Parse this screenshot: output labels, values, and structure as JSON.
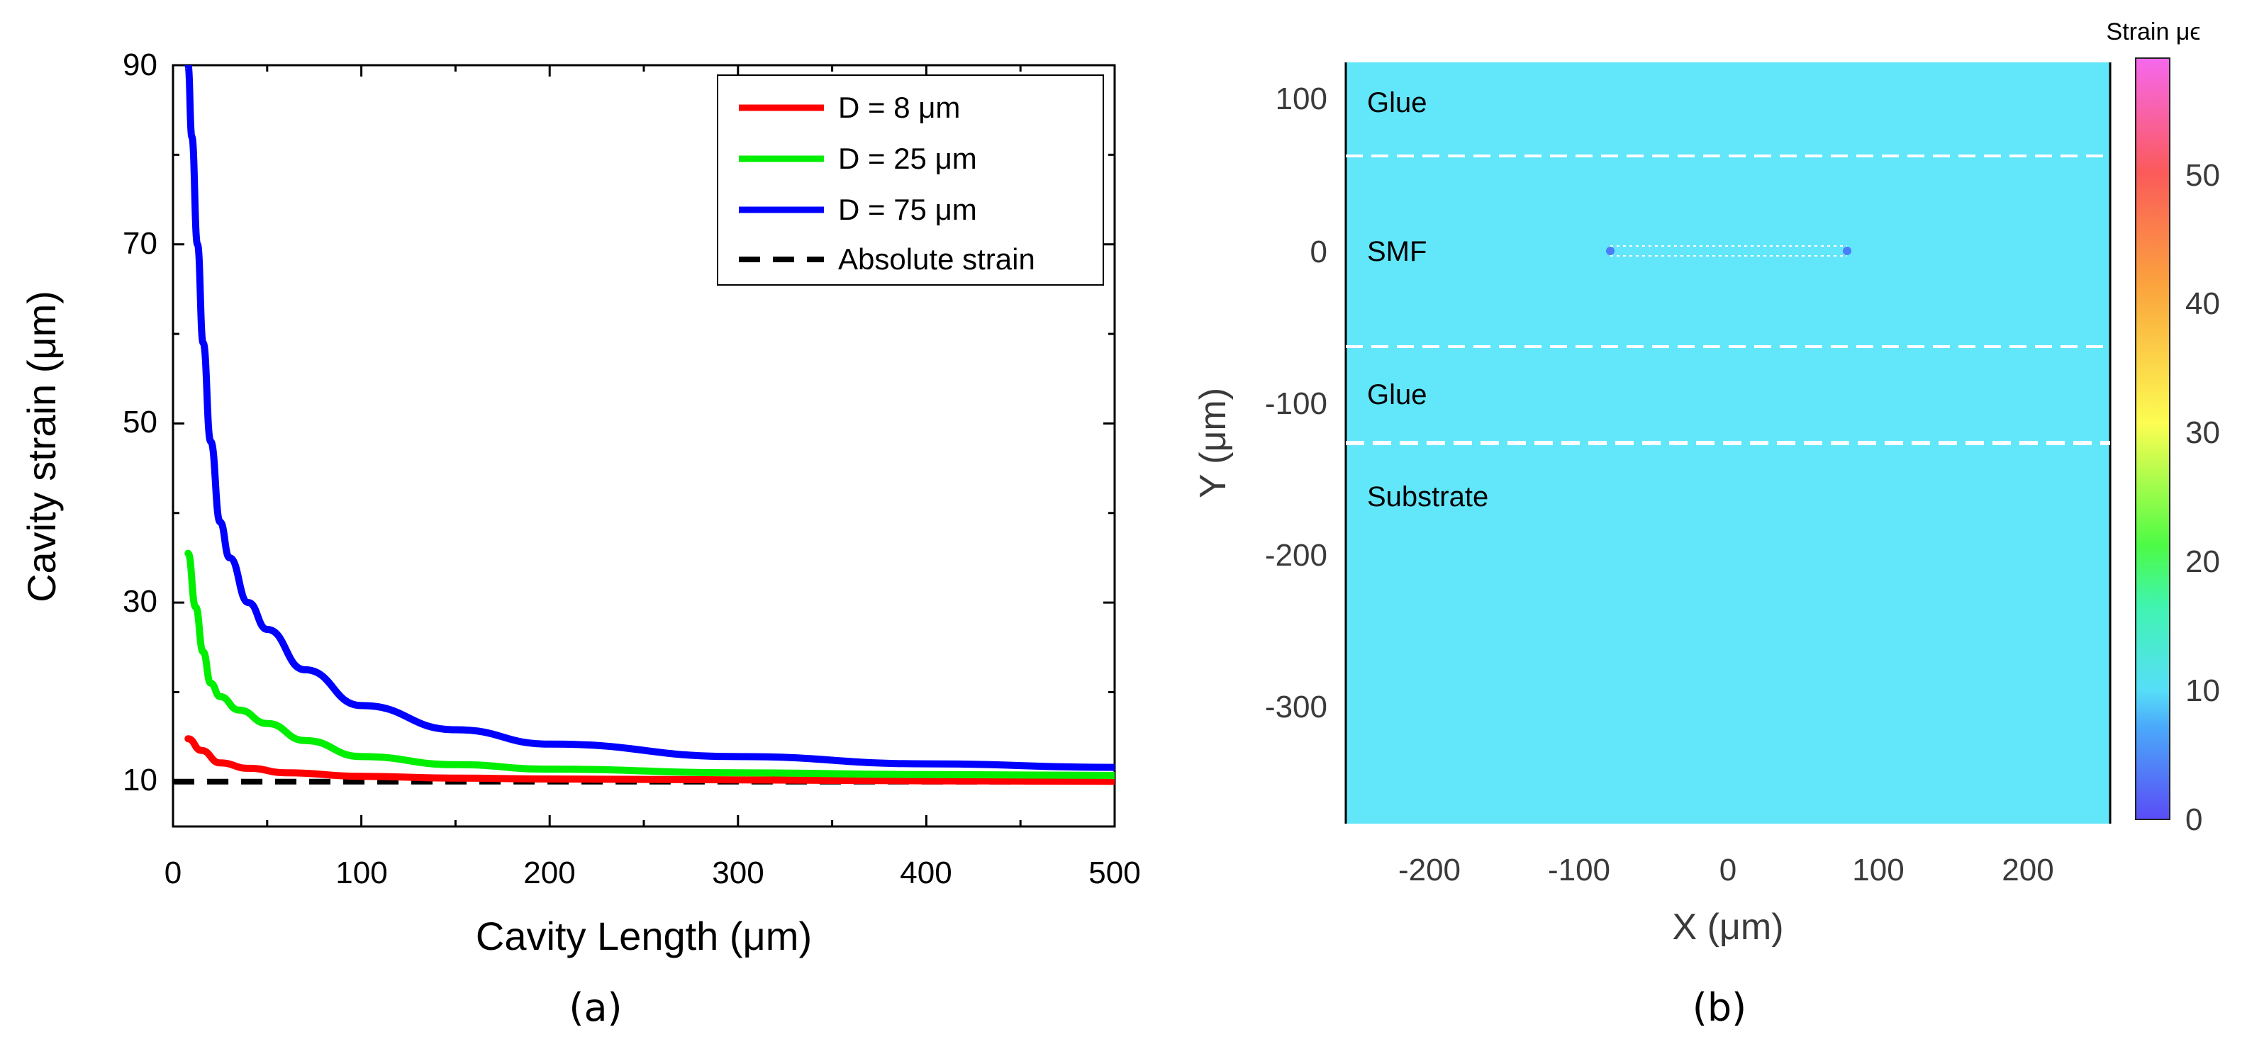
{
  "chart_data": [
    {
      "type": "line",
      "panel_label": "(a)",
      "xlabel": "Cavity Length (μm)",
      "ylabel": "Cavity strain (μm)",
      "xlim": [
        0,
        500
      ],
      "ylim": [
        5,
        90
      ],
      "xticks": [
        "0",
        "100",
        "200",
        "300",
        "400",
        "500"
      ],
      "yticks": [
        "10",
        "30",
        "50",
        "70",
        "90"
      ],
      "legend_position": "top-right",
      "series": [
        {
          "name": "D = 8 μm",
          "color": "#ff0000",
          "style": "solid",
          "x": [
            8,
            15,
            25,
            40,
            60,
            100,
            150,
            200,
            300,
            400,
            500
          ],
          "y": [
            14.8,
            13.5,
            12.1,
            11.5,
            11.0,
            10.6,
            10.4,
            10.3,
            10.2,
            10.1,
            10.05
          ]
        },
        {
          "name": "D = 25 μm",
          "color": "#00ee00",
          "style": "solid",
          "x": [
            8,
            12,
            16,
            20,
            25,
            35,
            50,
            70,
            100,
            150,
            200,
            300,
            400,
            500
          ],
          "y": [
            35.5,
            29.5,
            24.5,
            21.0,
            19.5,
            18.0,
            16.5,
            14.6,
            12.8,
            11.9,
            11.4,
            11.0,
            10.8,
            10.7
          ]
        },
        {
          "name": "D = 75 μm",
          "color": "#0000ff",
          "style": "solid",
          "x": [
            8,
            10,
            13,
            16,
            20,
            25,
            30,
            40,
            50,
            70,
            100,
            150,
            200,
            300,
            400,
            500
          ],
          "y": [
            90,
            82,
            70,
            59,
            48,
            39,
            35,
            30,
            27,
            22.5,
            18.5,
            15.8,
            14.2,
            12.8,
            12.0,
            11.6
          ]
        },
        {
          "name": "Absolute strain",
          "color": "#000000",
          "style": "dashed",
          "x": [
            0,
            500
          ],
          "y": [
            10,
            10
          ]
        }
      ]
    },
    {
      "type": "heatmap",
      "panel_label": "(b)",
      "xlabel": "X (μm)",
      "ylabel": "Y (μm)",
      "xlim": [
        -255,
        255
      ],
      "ylim": [
        -377,
        124
      ],
      "xticks": [
        "-200",
        "-100",
        "0",
        "100",
        "200"
      ],
      "yticks": [
        "100",
        "0",
        "-100",
        "-200",
        "-300"
      ],
      "colorbar_title": "Strain μϵ",
      "colorbar_range": [
        0,
        59
      ],
      "colorbar_ticks": [
        "0",
        "10",
        "20",
        "30",
        "40",
        "50"
      ],
      "field_value": 10,
      "boundaries_y": [
        62,
        -62,
        -124
      ],
      "cavity": {
        "x": [
          -77,
          77
        ],
        "y": 0
      },
      "regions": [
        {
          "name": "Glue",
          "y": 98
        },
        {
          "name": "SMF",
          "y": 0
        },
        {
          "name": "Glue",
          "y": -93
        },
        {
          "name": "Substrate",
          "y": -160
        }
      ]
    }
  ],
  "colors": {
    "field": "#62e6fa",
    "boundary": "#ffffff"
  }
}
